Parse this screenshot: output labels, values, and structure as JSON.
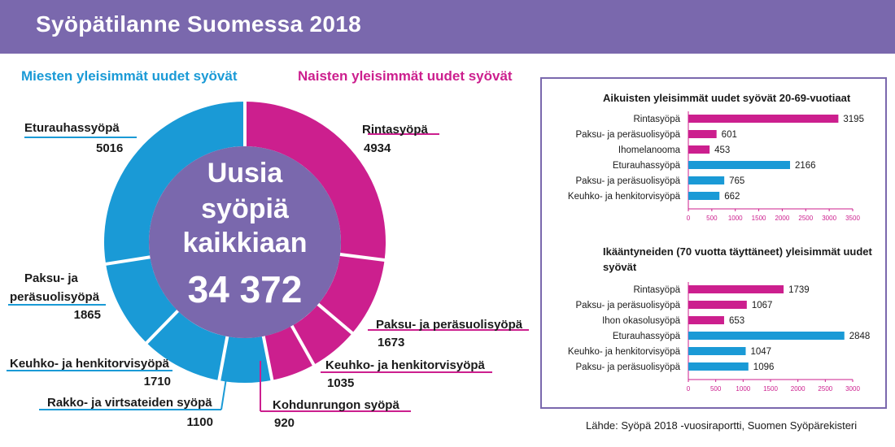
{
  "header": {
    "title": "Syöpätilanne Suomessa 2018"
  },
  "colors": {
    "men": "#1a9ad6",
    "women": "#cc1f8e",
    "center": "#7a68ad",
    "header": "#7a68ad"
  },
  "source": "Lähde: Syöpä 2018 -vuosiraportti, Suomen Syöpärekisteri",
  "chart_data": [
    {
      "type": "pie",
      "subtitle_men": "Miesten yleisimmät uudet syövät",
      "subtitle_women": "Naisten yleisimmät uudet syövät",
      "center_text": [
        "Uusia",
        "syöpiä",
        "kaikkiaan"
      ],
      "total": "34 372",
      "slices": [
        {
          "label": "Rintasyöpä",
          "display": "4934",
          "value": 4934,
          "group": "women"
        },
        {
          "label": "Paksu- ja peräsuolisyöpä",
          "display": "1673",
          "value": 1673,
          "group": "women"
        },
        {
          "label": "Keuhko- ja henkitorvisyöpä",
          "display": "1035",
          "value": 1035,
          "group": "women"
        },
        {
          "label": "Kohdunrungon syöpä",
          "display": "920",
          "value": 920,
          "group": "women"
        },
        {
          "label": "Rakko- ja virtsateiden syöpä",
          "display": "1100",
          "value": 1100,
          "group": "men"
        },
        {
          "label": "Keuhko- ja henkitorvisyöpä",
          "display": "1710",
          "value": 1710,
          "group": "men"
        },
        {
          "label": "Paksu- ja peräsuolisyöpä",
          "display": "1865",
          "value": 1865,
          "group": "men"
        },
        {
          "label": "Eturauhassyöpä",
          "display": "5016",
          "value": 5016,
          "group": "men"
        }
      ]
    },
    {
      "type": "bar",
      "orientation": "horizontal",
      "title": "Aikuisten yleisimmät uudet syövät 20-69-vuotiaat",
      "categories": [
        "Rintasyöpä",
        "Paksu- ja peräsuolisyöpä",
        "Ihomelanooma",
        "Eturauhassyöpä",
        "Paksu- ja peräsuolisyöpä",
        "Keuhko- ja henkitorvisyöpä"
      ],
      "values": [
        3195,
        601,
        453,
        2166,
        765,
        662
      ],
      "groups": [
        "women",
        "women",
        "women",
        "men",
        "men",
        "men"
      ],
      "xlim": [
        0,
        3500
      ],
      "ticks": [
        "0",
        "500",
        "1000",
        "1500",
        "2000",
        "2500",
        "3000",
        "3500"
      ]
    },
    {
      "type": "bar",
      "orientation": "horizontal",
      "title": "Ikääntyneiden (70 vuotta täyttäneet) yleisimmät uudet  syövät",
      "categories": [
        "Rintasyöpä",
        "Paksu- ja peräsuolisyöpä",
        "Ihon okasolusyöpä",
        "Eturauhassyöpä",
        "Keuhko- ja henkitorvisyöpä",
        "Paksu- ja peräsuolisyöpä"
      ],
      "values": [
        1739,
        1067,
        653,
        2848,
        1047,
        1096
      ],
      "groups": [
        "women",
        "women",
        "women",
        "men",
        "men",
        "men"
      ],
      "xlim": [
        0,
        3000
      ],
      "ticks": [
        "0",
        "500",
        "1000",
        "1500",
        "2000",
        "2500",
        "3000"
      ]
    }
  ]
}
